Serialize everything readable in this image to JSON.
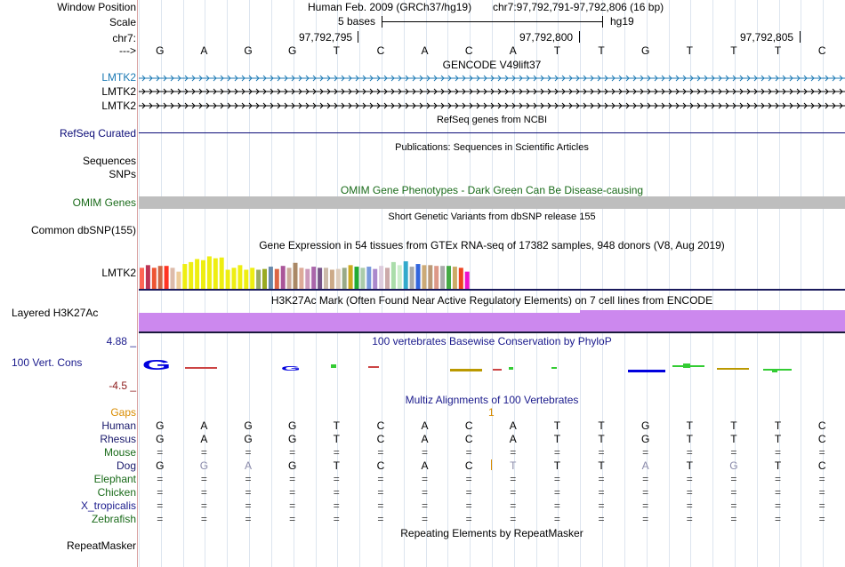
{
  "labels": {
    "window_position": "Window Position",
    "scale": "Scale",
    "chrom": "chr7:",
    "arrow": "--->",
    "gencode_1": "LMTK2",
    "gencode_2": "LMTK2",
    "gencode_3": "LMTK2",
    "refseq": "RefSeq Curated",
    "sequences": "Sequences",
    "snps": "SNPs",
    "omim": "OMIM Genes",
    "dbsnp": "Common dbSNP(155)",
    "gtex": "LMTK2",
    "h3k27": "Layered H3K27Ac",
    "cons_max": "4.88 _",
    "cons": "100 Vert. Cons",
    "cons_min": "-4.5 _",
    "gaps": "Gaps",
    "species": [
      "Human",
      "Rhesus",
      "Mouse",
      "Dog",
      "Elephant",
      "Chicken",
      "X_tropicalis",
      "Zebrafish"
    ],
    "repeatmasker": "RepeatMasker"
  },
  "header": {
    "assembly": "Human Feb. 2009 (GRCh37/hg19)",
    "position": "chr7:97,792,791-97,792,806 (16 bp)",
    "scale_text": "5 bases",
    "scale_db": "hg19",
    "coord_1": "97,792,795",
    "coord_2": "97,792,800",
    "coord_3": "97,792,805"
  },
  "sequence": [
    "G",
    "A",
    "G",
    "G",
    "T",
    "C",
    "A",
    "C",
    "A",
    "T",
    "T",
    "G",
    "T",
    "T",
    "T",
    "C"
  ],
  "alignments": {
    "Human": [
      "G",
      "A",
      "G",
      "G",
      "T",
      "C",
      "A",
      "C",
      "A",
      "T",
      "T",
      "G",
      "T",
      "T",
      "T",
      "C"
    ],
    "Rhesus": [
      "G",
      "A",
      "G",
      "G",
      "T",
      "C",
      "A",
      "C",
      "A",
      "T",
      "T",
      "G",
      "T",
      "T",
      "T",
      "C"
    ],
    "Mouse": [
      "=",
      "=",
      "=",
      "=",
      "=",
      "=",
      "=",
      "=",
      "=",
      "=",
      "=",
      "=",
      "=",
      "=",
      "=",
      "="
    ],
    "Dog": [
      "G",
      "G",
      "A",
      "G",
      "T",
      "C",
      "A",
      "C",
      "T",
      "T",
      "T",
      "A",
      "T",
      "G",
      "T",
      "C"
    ],
    "Elephant": [
      "=",
      "=",
      "=",
      "=",
      "=",
      "=",
      "=",
      "=",
      "=",
      "=",
      "=",
      "=",
      "=",
      "=",
      "=",
      "="
    ],
    "Chicken": [
      "=",
      "=",
      "=",
      "=",
      "=",
      "=",
      "=",
      "=",
      "=",
      "=",
      "=",
      "=",
      "=",
      "=",
      "=",
      "="
    ],
    "X_tropicalis": [
      "=",
      "=",
      "=",
      "=",
      "=",
      "=",
      "=",
      "=",
      "=",
      "=",
      "=",
      "=",
      "=",
      "=",
      "=",
      "="
    ],
    "Zebrafish": [
      "=",
      "=",
      "=",
      "=",
      "=",
      "=",
      "=",
      "=",
      "=",
      "=",
      "=",
      "=",
      "=",
      "=",
      "=",
      "="
    ]
  },
  "dog_mismatch": [
    false,
    true,
    true,
    false,
    false,
    false,
    false,
    false,
    true,
    false,
    false,
    true,
    false,
    true,
    false,
    false
  ],
  "gap_count": "1",
  "tracks": {
    "gencode_title": "GENCODE V49lift37",
    "refseq_title": "RefSeq genes from NCBI",
    "pubs_title": "Publications: Sequences in Scientific Articles",
    "omim_title": "OMIM Gene Phenotypes - Dark Green Can Be Disease-causing",
    "dbsnp_title": "Short Genetic Variants from dbSNP release 155",
    "gtex_title": "Gene Expression in 54 tissues from GTEx RNA-seq of 17382 samples, 948 donors (V8, Aug 2019)",
    "h3k27_title": "H3K27Ac Mark (Often Found Near Active Regulatory Elements) on 7 cell lines from ENCODE",
    "phylop_title": "100 vertebrates Basewise Conservation by PhyloP",
    "multiz_title": "Multiz Alignments of 100 Vertebrates",
    "repeat_title": "Repeating Elements by RepeatMasker"
  },
  "gtex_expression": [
    {
      "tissue": 1,
      "value": 0.55,
      "color": "#ff6655"
    },
    {
      "tissue": 2,
      "value": 0.62,
      "color": "#bb3355"
    },
    {
      "tissue": 3,
      "value": 0.55,
      "color": "#ee5533"
    },
    {
      "tissue": 4,
      "value": 0.6,
      "color": "#cc6644"
    },
    {
      "tissue": 5,
      "value": 0.6,
      "color": "#ff3322"
    },
    {
      "tissue": 6,
      "value": 0.55,
      "color": "#ddbbaa"
    },
    {
      "tissue": 7,
      "value": 0.45,
      "color": "#eecc99"
    },
    {
      "tissue": 8,
      "value": 0.65,
      "color": "#eeee11"
    },
    {
      "tissue": 9,
      "value": 0.7,
      "color": "#eeee11"
    },
    {
      "tissue": 10,
      "value": 0.78,
      "color": "#eeee11"
    },
    {
      "tissue": 11,
      "value": 0.75,
      "color": "#eeee11"
    },
    {
      "tissue": 12,
      "value": 0.85,
      "color": "#eeee11"
    },
    {
      "tissue": 13,
      "value": 0.8,
      "color": "#eeee11"
    },
    {
      "tissue": 14,
      "value": 0.82,
      "color": "#eeee11"
    },
    {
      "tissue": 15,
      "value": 0.5,
      "color": "#eeee11"
    },
    {
      "tissue": 16,
      "value": 0.55,
      "color": "#eeee11"
    },
    {
      "tissue": 17,
      "value": 0.62,
      "color": "#eeee11"
    },
    {
      "tissue": 18,
      "value": 0.5,
      "color": "#eeee11"
    },
    {
      "tissue": 19,
      "value": 0.55,
      "color": "#eeee11"
    },
    {
      "tissue": 20,
      "value": 0.5,
      "color": "#99aa66"
    },
    {
      "tissue": 21,
      "value": 0.52,
      "color": "#99aa22"
    },
    {
      "tissue": 22,
      "value": 0.58,
      "color": "#6688aa"
    },
    {
      "tissue": 23,
      "value": 0.52,
      "color": "#dd6644"
    },
    {
      "tissue": 24,
      "value": 0.6,
      "color": "#aa5599"
    },
    {
      "tissue": 25,
      "value": 0.55,
      "color": "#ccaa99"
    },
    {
      "tissue": 26,
      "value": 0.68,
      "color": "#aa8866"
    },
    {
      "tissue": 27,
      "value": 0.55,
      "color": "#ddaa99"
    },
    {
      "tissue": 28,
      "value": 0.52,
      "color": "#cc99bb"
    },
    {
      "tissue": 29,
      "value": 0.58,
      "color": "#aa66aa"
    },
    {
      "tissue": 30,
      "value": 0.55,
      "color": "#775588"
    },
    {
      "tissue": 31,
      "value": 0.55,
      "color": "#ccbbaa"
    },
    {
      "tissue": 32,
      "value": 0.5,
      "color": "#ccaa88"
    },
    {
      "tissue": 33,
      "value": 0.52,
      "color": "#ddccbb"
    },
    {
      "tissue": 34,
      "value": 0.55,
      "color": "#99aa88"
    },
    {
      "tissue": 35,
      "value": 0.62,
      "color": "#ccaa22"
    },
    {
      "tissue": 36,
      "value": 0.58,
      "color": "#22aa33"
    },
    {
      "tissue": 37,
      "value": 0.55,
      "color": "#aaccaa"
    },
    {
      "tissue": 38,
      "value": 0.58,
      "color": "#7799dd"
    },
    {
      "tissue": 39,
      "value": 0.52,
      "color": "#aa88cc"
    },
    {
      "tissue": 40,
      "value": 0.6,
      "color": "#ddccdd"
    },
    {
      "tissue": 41,
      "value": 0.55,
      "color": "#ccaaaa"
    },
    {
      "tissue": 42,
      "value": 0.7,
      "color": "#aaddaa"
    },
    {
      "tissue": 43,
      "value": 0.62,
      "color": "#cceecc"
    },
    {
      "tissue": 44,
      "value": 0.72,
      "color": "#33aacc"
    },
    {
      "tissue": 45,
      "value": 0.58,
      "color": "#aaaaaa"
    },
    {
      "tissue": 46,
      "value": 0.65,
      "color": "#3366dd"
    },
    {
      "tissue": 47,
      "value": 0.62,
      "color": "#ccaa77"
    },
    {
      "tissue": 48,
      "value": 0.62,
      "color": "#bb9977"
    },
    {
      "tissue": 49,
      "value": 0.6,
      "color": "#dd9988"
    },
    {
      "tissue": 50,
      "value": 0.6,
      "color": "#aaaaaa"
    },
    {
      "tissue": 51,
      "value": 0.6,
      "color": "#44aa44"
    },
    {
      "tissue": 52,
      "value": 0.58,
      "color": "#ccaa66"
    },
    {
      "tissue": 53,
      "value": 0.55,
      "color": "#ee4422"
    },
    {
      "tissue": 54,
      "value": 0.45,
      "color": "#ee11cc"
    }
  ],
  "colors": {
    "gencode_blue": "#1c7ab4",
    "black": "#000000",
    "refseq_navy": "#0c0c78",
    "omim_green": "#1a6b1a",
    "omim_bar": "#bebebe",
    "h3k27": "#cc88ee",
    "phylop_blue": "#1a1a8c",
    "phylop_max": "#1a1a8c",
    "phylop_min": "#8c1a1a",
    "gaps": "#d98c00",
    "cons_g": "#0000dd",
    "cons_c": "#cc4444",
    "cons_t": "#33cc33",
    "cons_a": "#bb9900"
  }
}
